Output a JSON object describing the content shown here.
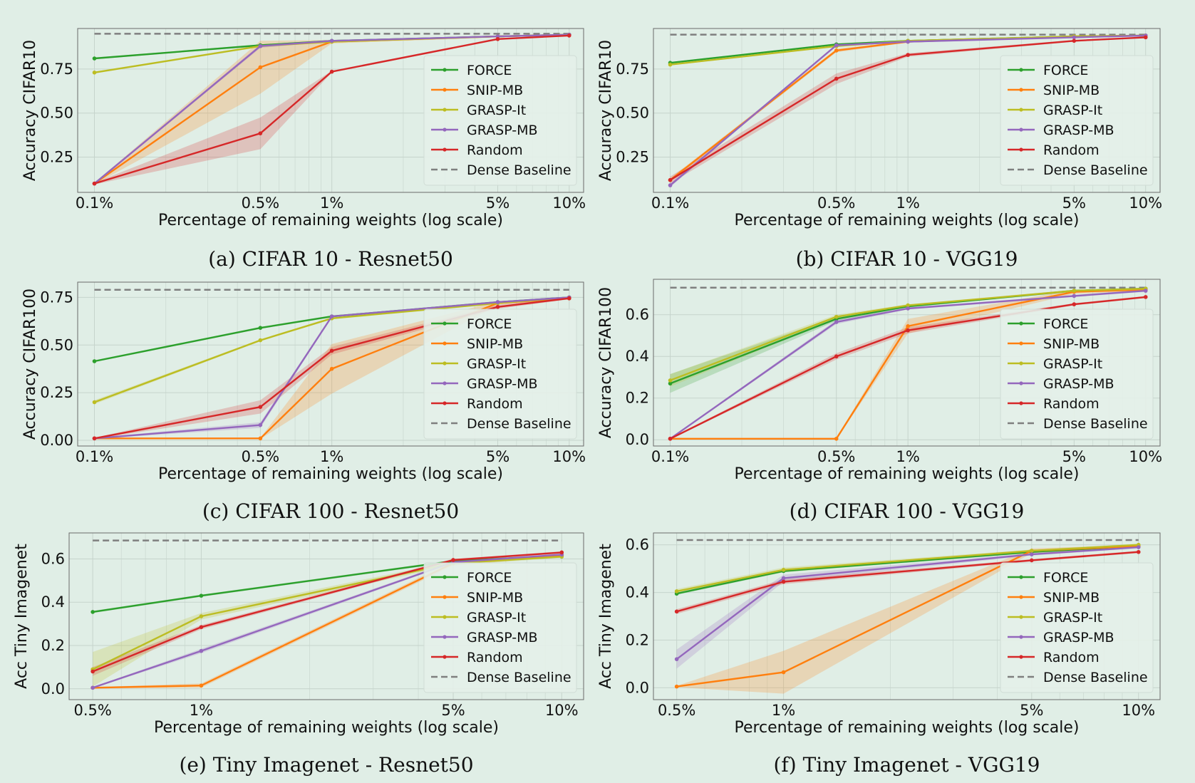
{
  "colors": {
    "background": "#e0eee6",
    "plot_background": "#e0eee6",
    "grid": "#c6d4cc",
    "FORCE": "#2ca02c",
    "SNIP-MB": "#ff7f0e",
    "GRASP-It": "#bcbd22",
    "GRASP-MB": "#9467bd",
    "Random": "#d62728",
    "Dense Baseline": "#7f7f7f"
  },
  "chart_data": [
    {
      "type": "line",
      "caption": "(a) CIFAR 10 - Resnet50",
      "xlabel": "Percentage of remaining weights (log scale)",
      "ylabel": "Accuracy CIFAR10",
      "x_scale": "log",
      "xlim": [
        0.085,
        11.5
      ],
      "ylim": [
        0.05,
        0.98
      ],
      "x_ticks": [
        0.1,
        0.5,
        1,
        5,
        10
      ],
      "x_tick_labels": [
        "0.1%",
        "0.5%",
        "1%",
        "5%",
        "10%"
      ],
      "y_ticks": [
        0.25,
        0.5,
        0.75
      ],
      "y_tick_labels": [
        "0.25",
        "0.50",
        "0.75"
      ],
      "grid": true,
      "legend": "lower-right",
      "x": [
        0.1,
        0.5,
        1,
        5,
        10
      ],
      "series": [
        {
          "name": "FORCE",
          "values": [
            0.81,
            0.885,
            0.91,
            0.935,
            0.945
          ],
          "band": [
            0.005,
            0.005,
            0.005,
            0.003,
            0.003
          ]
        },
        {
          "name": "SNIP-MB",
          "values": [
            0.1,
            0.76,
            0.905,
            0.935,
            0.945
          ],
          "band": [
            0.005,
            0.15,
            0.01,
            0.005,
            0.003
          ]
        },
        {
          "name": "GRASP-It",
          "values": [
            0.73,
            0.88,
            0.905,
            0.935,
            0.945
          ],
          "band": [
            0.005,
            0.005,
            0.005,
            0.003,
            0.003
          ]
        },
        {
          "name": "GRASP-MB",
          "values": [
            0.1,
            0.88,
            0.91,
            0.935,
            0.945
          ],
          "band": [
            0.005,
            0.01,
            0.005,
            0.003,
            0.003
          ]
        },
        {
          "name": "Random",
          "values": [
            0.1,
            0.385,
            0.735,
            0.92,
            0.94
          ],
          "band": [
            0.005,
            0.09,
            0.005,
            0.005,
            0.003
          ]
        }
      ],
      "baseline": {
        "name": "Dense Baseline",
        "value": 0.95
      }
    },
    {
      "type": "line",
      "caption": "(b) CIFAR 10 - VGG19",
      "xlabel": "Percentage of remaining weights (log scale)",
      "ylabel": "Accuracy CIFAR10",
      "x_scale": "log",
      "xlim": [
        0.085,
        11.5
      ],
      "ylim": [
        0.05,
        0.98
      ],
      "x_ticks": [
        0.1,
        0.5,
        1,
        5,
        10
      ],
      "x_tick_labels": [
        "0.1%",
        "0.5%",
        "1%",
        "5%",
        "10%"
      ],
      "y_ticks": [
        0.25,
        0.5,
        0.75
      ],
      "y_tick_labels": [
        "0.25",
        "0.50",
        "0.75"
      ],
      "grid": true,
      "legend": "lower-right",
      "x": [
        0.1,
        0.5,
        1,
        5,
        10
      ],
      "series": [
        {
          "name": "FORCE",
          "values": [
            0.785,
            0.89,
            0.91,
            0.935,
            0.94
          ],
          "band": [
            0.005,
            0.005,
            0.005,
            0.003,
            0.003
          ]
        },
        {
          "name": "SNIP-MB",
          "values": [
            0.12,
            0.855,
            0.905,
            0.935,
            0.94
          ],
          "band": [
            0.01,
            0.01,
            0.005,
            0.003,
            0.003
          ]
        },
        {
          "name": "GRASP-It",
          "values": [
            0.775,
            0.88,
            0.91,
            0.935,
            0.94
          ],
          "band": [
            0.005,
            0.005,
            0.005,
            0.003,
            0.003
          ]
        },
        {
          "name": "GRASP-MB",
          "values": [
            0.09,
            0.885,
            0.905,
            0.93,
            0.94
          ],
          "band": [
            0.01,
            0.005,
            0.005,
            0.003,
            0.003
          ]
        },
        {
          "name": "Random",
          "values": [
            0.12,
            0.695,
            0.83,
            0.91,
            0.93
          ],
          "band": [
            0.02,
            0.03,
            0.01,
            0.005,
            0.003
          ]
        }
      ],
      "baseline": {
        "name": "Dense Baseline",
        "value": 0.945
      }
    },
    {
      "type": "line",
      "caption": "(c) CIFAR 100 - Resnet50",
      "xlabel": "Percentage of remaining weights (log scale)",
      "ylabel": "Accuracy CIFAR100",
      "x_scale": "log",
      "xlim": [
        0.085,
        11.5
      ],
      "ylim": [
        -0.03,
        0.83
      ],
      "x_ticks": [
        0.1,
        0.5,
        1,
        5,
        10
      ],
      "x_tick_labels": [
        "0.1%",
        "0.5%",
        "1%",
        "5%",
        "10%"
      ],
      "y_ticks": [
        0,
        0.25,
        0.5,
        0.75
      ],
      "y_tick_labels": [
        "0.00",
        "0.25",
        "0.50",
        "0.75"
      ],
      "grid": true,
      "legend": "lower-right",
      "x": [
        0.1,
        0.5,
        1,
        5,
        10
      ],
      "series": [
        {
          "name": "FORCE",
          "values": [
            0.415,
            0.59,
            0.65,
            0.725,
            0.75
          ],
          "band": [
            0.005,
            0.005,
            0.005,
            0.005,
            0.005
          ]
        },
        {
          "name": "SNIP-MB",
          "values": [
            0.01,
            0.01,
            0.375,
            0.72,
            0.745
          ],
          "band": [
            0.003,
            0.003,
            0.13,
            0.01,
            0.005
          ]
        },
        {
          "name": "GRASP-It",
          "values": [
            0.2,
            0.525,
            0.64,
            0.72,
            0.75
          ],
          "band": [
            0.01,
            0.005,
            0.005,
            0.005,
            0.005
          ]
        },
        {
          "name": "GRASP-MB",
          "values": [
            0.01,
            0.08,
            0.65,
            0.725,
            0.75
          ],
          "band": [
            0.003,
            0.015,
            0.005,
            0.005,
            0.005
          ]
        },
        {
          "name": "Random",
          "values": [
            0.01,
            0.175,
            0.47,
            0.7,
            0.745
          ],
          "band": [
            0.003,
            0.035,
            0.02,
            0.01,
            0.005
          ]
        }
      ],
      "baseline": {
        "name": "Dense Baseline",
        "value": 0.79
      }
    },
    {
      "type": "line",
      "caption": "(d) CIFAR 100 - VGG19",
      "xlabel": "Percentage of remaining weights (log scale)",
      "ylabel": "Accuracy CIFAR100",
      "x_scale": "log",
      "xlim": [
        0.085,
        11.5
      ],
      "ylim": [
        -0.03,
        0.77
      ],
      "x_ticks": [
        0.1,
        0.5,
        1,
        5,
        10
      ],
      "x_tick_labels": [
        "0.1%",
        "0.5%",
        "1%",
        "5%",
        "10%"
      ],
      "y_ticks": [
        0,
        0.2,
        0.4,
        0.6
      ],
      "y_tick_labels": [
        "0.0",
        "0.2",
        "0.4",
        "0.6"
      ],
      "grid": true,
      "legend": "lower-right",
      "x": [
        0.1,
        0.5,
        1,
        5,
        10
      ],
      "series": [
        {
          "name": "FORCE",
          "values": [
            0.27,
            0.58,
            0.64,
            0.715,
            0.725
          ],
          "band": [
            0.045,
            0.01,
            0.005,
            0.005,
            0.005
          ]
        },
        {
          "name": "SNIP-MB",
          "values": [
            0.005,
            0.005,
            0.545,
            0.71,
            0.72
          ],
          "band": [
            0.003,
            0.003,
            0.035,
            0.01,
            0.005
          ]
        },
        {
          "name": "GRASP-It",
          "values": [
            0.285,
            0.59,
            0.645,
            0.715,
            0.725
          ],
          "band": [
            0.03,
            0.01,
            0.005,
            0.005,
            0.005
          ]
        },
        {
          "name": "GRASP-MB",
          "values": [
            0.005,
            0.565,
            0.63,
            0.69,
            0.715
          ],
          "band": [
            0.003,
            0.01,
            0.005,
            0.005,
            0.005
          ]
        },
        {
          "name": "Random",
          "values": [
            0.005,
            0.4,
            0.525,
            0.65,
            0.685
          ],
          "band": [
            0.003,
            0.015,
            0.015,
            0.005,
            0.005
          ]
        }
      ],
      "baseline": {
        "name": "Dense Baseline",
        "value": 0.73
      }
    },
    {
      "type": "line",
      "caption": "(e) Tiny Imagenet - Resnet50",
      "xlabel": "Percentage of remaining weights (log scale)",
      "ylabel": "Acc Tiny Imagenet",
      "x_scale": "log",
      "xlim": [
        0.43,
        11.5
      ],
      "ylim": [
        -0.05,
        0.72
      ],
      "x_ticks": [
        0.5,
        1,
        5,
        10
      ],
      "x_tick_labels": [
        "0.5%",
        "1%",
        "5%",
        "10%"
      ],
      "y_ticks": [
        0,
        0.2,
        0.4,
        0.6
      ],
      "y_tick_labels": [
        "0.0",
        "0.2",
        "0.4",
        "0.6"
      ],
      "grid": true,
      "legend": "lower-right",
      "x": [
        0.5,
        1,
        5,
        10
      ],
      "series": [
        {
          "name": "FORCE",
          "values": [
            0.355,
            0.43,
            0.59,
            0.615
          ],
          "band": [
            0.005,
            0.005,
            0.005,
            0.005
          ]
        },
        {
          "name": "SNIP-MB",
          "values": [
            0.005,
            0.015,
            0.58,
            0.615
          ],
          "band": [
            0.003,
            0.01,
            0.01,
            0.005
          ]
        },
        {
          "name": "GRASP-It",
          "values": [
            0.09,
            0.335,
            0.58,
            0.61
          ],
          "band": [
            0.08,
            0.015,
            0.01,
            0.005
          ]
        },
        {
          "name": "GRASP-MB",
          "values": [
            0.005,
            0.175,
            0.585,
            0.62
          ],
          "band": [
            0.003,
            0.01,
            0.005,
            0.005
          ]
        },
        {
          "name": "Random",
          "values": [
            0.08,
            0.285,
            0.595,
            0.63
          ],
          "band": [
            0.02,
            0.01,
            0.005,
            0.005
          ]
        }
      ],
      "baseline": {
        "name": "Dense Baseline",
        "value": 0.685
      }
    },
    {
      "type": "line",
      "caption": "(f) Tiny Imagenet - VGG19",
      "xlabel": "Percentage of remaining weights (log scale)",
      "ylabel": "Acc Tiny Imagenet",
      "x_scale": "log",
      "xlim": [
        0.43,
        11.5
      ],
      "ylim": [
        -0.05,
        0.65
      ],
      "x_ticks": [
        0.5,
        1,
        5,
        10
      ],
      "x_tick_labels": [
        "0.5%",
        "1%",
        "5%",
        "10%"
      ],
      "y_ticks": [
        0,
        0.2,
        0.4,
        0.6
      ],
      "y_tick_labels": [
        "0.0",
        "0.2",
        "0.4",
        "0.6"
      ],
      "grid": true,
      "legend": "lower-right",
      "x": [
        0.5,
        1,
        5,
        10
      ],
      "series": [
        {
          "name": "FORCE",
          "values": [
            0.395,
            0.49,
            0.57,
            0.595
          ],
          "band": [
            0.005,
            0.005,
            0.005,
            0.005
          ]
        },
        {
          "name": "SNIP-MB",
          "values": [
            0.005,
            0.065,
            0.575,
            0.595
          ],
          "band": [
            0.003,
            0.09,
            0.01,
            0.005
          ]
        },
        {
          "name": "GRASP-It",
          "values": [
            0.405,
            0.495,
            0.575,
            0.6
          ],
          "band": [
            0.01,
            0.01,
            0.005,
            0.005
          ]
        },
        {
          "name": "GRASP-MB",
          "values": [
            0.12,
            0.46,
            0.56,
            0.59
          ],
          "band": [
            0.04,
            0.015,
            0.005,
            0.005
          ]
        },
        {
          "name": "Random",
          "values": [
            0.32,
            0.445,
            0.535,
            0.57
          ],
          "band": [
            0.01,
            0.01,
            0.005,
            0.005
          ]
        }
      ],
      "baseline": {
        "name": "Dense Baseline",
        "value": 0.62
      }
    }
  ]
}
